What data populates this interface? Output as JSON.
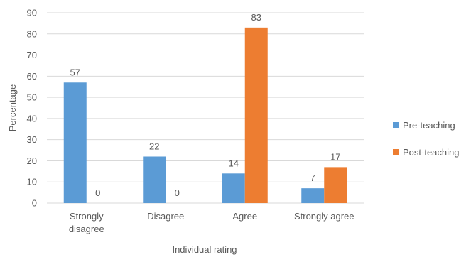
{
  "chart_data": {
    "type": "bar",
    "categories": [
      [
        "Strongly",
        "disagree"
      ],
      [
        "Disagree"
      ],
      [
        "Agree"
      ],
      [
        "Strongly agree"
      ]
    ],
    "series": [
      {
        "name": "Pre-teaching",
        "values": [
          57,
          22,
          14,
          7
        ],
        "color": "#5b9bd5"
      },
      {
        "name": "Post-teaching",
        "values": [
          0,
          0,
          83,
          17
        ],
        "color": "#ed7d31"
      }
    ],
    "xlabel": "Individual rating",
    "ylabel": "Percentage",
    "ylim": [
      0,
      90
    ],
    "yticks": [
      0,
      10,
      20,
      30,
      40,
      50,
      60,
      70,
      80,
      90
    ],
    "grid": true,
    "legend": "right"
  }
}
